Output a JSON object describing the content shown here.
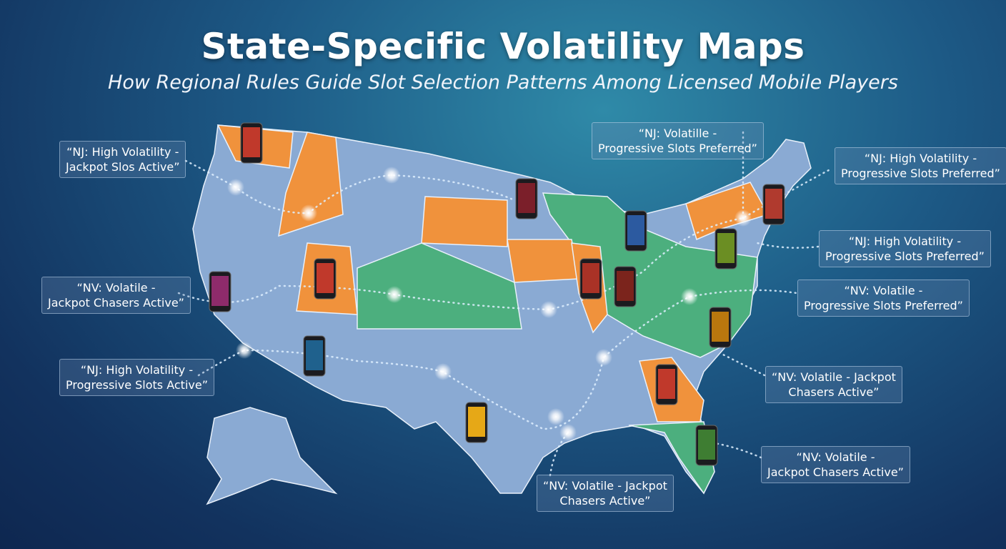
{
  "header": {
    "title": "State-Specific Volatility Maps",
    "subtitle": "How Regional Rules Guide Slot Selection Patterns Among Licensed Mobile Players"
  },
  "callouts": [
    {
      "lines": [
        "“NJ: High Volatility -",
        "Jackpot Slos Active”"
      ]
    },
    {
      "lines": [
        "“NJ: Volatille -",
        "Progressive Slots Preferred”"
      ]
    },
    {
      "lines": [
        "“NJ: High Volatility -",
        "Progressive Slots Preferred”"
      ]
    },
    {
      "lines": [
        "“NV: Volatile -",
        "Jackpot Chasers Active”"
      ]
    },
    {
      "lines": [
        "“NJ: High Volatility -",
        "Progressive Slots Preferred”"
      ]
    },
    {
      "lines": [
        "“NV: Volatile -",
        "Progressive Slots Preferred”"
      ]
    },
    {
      "lines": [
        "“NJ: High Volatility -",
        "Progressive Slots Active”"
      ]
    },
    {
      "lines": [
        "“NV: Volatile - Jackpot",
        "Chasers Active”"
      ]
    },
    {
      "lines": [
        "“NV: Volatile -",
        "Jackpot Chasers Active”"
      ]
    },
    {
      "lines": [
        "“NV: Volatile - Jackpot",
        "Chasers Active”"
      ]
    }
  ]
}
